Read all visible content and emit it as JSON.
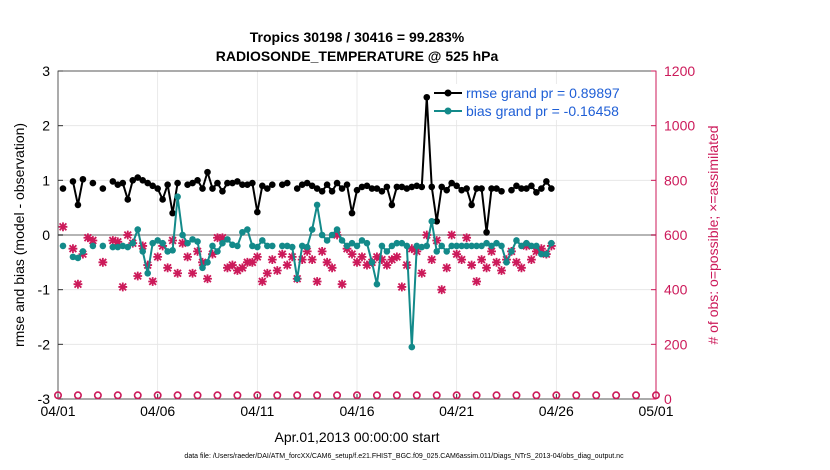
{
  "chart_data": {
    "type": "line",
    "title": "Tropics 30198 / 30416 = 99.283%",
    "subtitle": "RADIOSONDE_TEMPERATURE @ 525 hPa",
    "xlabel": "Apr.01,2013 00:00:00 start",
    "ylabel": "rmse and bias (model - observation)",
    "y2label": "# of obs: o=possible; ×=assimilated",
    "xlim": [
      0,
      30
    ],
    "ylim": [
      -3,
      3
    ],
    "y2lim": [
      0,
      1200
    ],
    "x_tick_labels": [
      "04/01",
      "04/06",
      "04/11",
      "04/16",
      "04/21",
      "04/26",
      "05/01"
    ],
    "x_tick_values": [
      0,
      5,
      10,
      15,
      20,
      25,
      30
    ],
    "y_tick_labels": [
      "3",
      "2",
      "1",
      "0",
      "-1",
      "-2",
      "-3"
    ],
    "y_tick_values": [
      3,
      2,
      1,
      0,
      -1,
      -2,
      -3
    ],
    "y2_tick_labels": [
      "1200",
      "1000",
      "800",
      "600",
      "400",
      "200",
      "0"
    ],
    "y2_tick_values": [
      1200,
      1000,
      800,
      600,
      400,
      200,
      0
    ],
    "grid": true,
    "legend_position": "top-right",
    "footer": "data file: /Users/raeder/DAI/ATM_forcXX/CAM6_setup/f.e21.FHIST_BGC.f09_025.CAM6assim.011/Diags_NTrS_2013-04/obs_diag_output.nc",
    "x": [
      0.25,
      0.5,
      0.75,
      1.0,
      1.25,
      1.5,
      1.75,
      2.0,
      2.25,
      2.5,
      2.75,
      3.0,
      3.25,
      3.5,
      3.75,
      4.0,
      4.25,
      4.5,
      4.75,
      5.0,
      5.25,
      5.5,
      5.75,
      6.0,
      6.25,
      6.5,
      6.75,
      7.0,
      7.25,
      7.5,
      7.75,
      8.0,
      8.25,
      8.5,
      8.75,
      9.0,
      9.25,
      9.5,
      9.75,
      10.0,
      10.25,
      10.5,
      10.75,
      11.0,
      11.25,
      11.5,
      11.75,
      12.0,
      12.25,
      12.5,
      12.75,
      13.0,
      13.25,
      13.5,
      13.75,
      14.0,
      14.25,
      14.5,
      14.75,
      15.0,
      15.25,
      15.5,
      15.75,
      16.0,
      16.25,
      16.5,
      16.75,
      17.0,
      17.25,
      17.5,
      17.75,
      18.0,
      18.25,
      18.5,
      18.75,
      19.0,
      19.25,
      19.5,
      19.75,
      20.0,
      20.25,
      20.5,
      20.75,
      21.0,
      21.25,
      21.5,
      21.75,
      22.0,
      22.25,
      22.5,
      22.75,
      23.0,
      23.25,
      23.5,
      23.75,
      24.0,
      24.25,
      24.5,
      24.75,
      25.0,
      25.25,
      25.5,
      25.75,
      26.0,
      26.25,
      26.5,
      26.75,
      27.0,
      27.25,
      27.5,
      27.75,
      28.0,
      28.25,
      28.5,
      28.75,
      29.0,
      29.25,
      29.5
    ],
    "series": [
      {
        "name": "rmse grand pr = 0.89897",
        "legend": "rmse grand pr = 0.89897",
        "color": "#000000",
        "values": [
          0.85,
          null,
          0.98,
          0.55,
          1.02,
          null,
          0.95,
          null,
          0.85,
          null,
          0.98,
          0.92,
          0.95,
          0.65,
          1.0,
          1.05,
          1.0,
          0.95,
          0.9,
          0.85,
          0.65,
          0.92,
          0.4,
          0.95,
          null,
          0.92,
          0.95,
          1.0,
          0.85,
          1.15,
          0.85,
          0.95,
          0.8,
          0.95,
          0.95,
          0.98,
          0.92,
          0.92,
          0.95,
          0.42,
          0.9,
          0.85,
          0.92,
          null,
          0.92,
          0.95,
          null,
          0.85,
          0.92,
          0.95,
          0.9,
          0.85,
          0.8,
          0.92,
          0.8,
          0.95,
          0.85,
          0.92,
          0.4,
          0.82,
          0.88,
          0.9,
          0.85,
          0.85,
          0.8,
          0.88,
          0.55,
          0.88,
          0.88,
          0.85,
          0.88,
          0.9,
          0.88,
          2.52,
          0.88,
          0.25,
          0.88,
          0.82,
          0.95,
          0.9,
          0.82,
          0.85,
          0.55,
          0.85,
          0.85,
          0.05,
          0.85,
          0.85,
          0.8,
          null,
          0.82,
          0.9,
          0.85,
          0.85,
          0.9,
          0.78,
          0.85,
          0.98,
          0.85,
          null,
          null,
          null,
          null,
          null,
          null,
          null,
          null,
          null,
          null,
          null,
          null,
          null,
          null,
          null,
          null,
          null,
          null,
          null
        ]
      },
      {
        "name": "bias grand pr = -0.16458",
        "legend": "bias grand pr = -0.16458",
        "color": "#138a8a",
        "values": [
          -0.2,
          null,
          -0.4,
          -0.42,
          -0.3,
          null,
          -0.2,
          null,
          -0.2,
          null,
          -0.22,
          -0.22,
          -0.2,
          -0.22,
          -0.15,
          0.1,
          -0.3,
          -0.7,
          -0.15,
          -0.1,
          -0.15,
          -0.3,
          -0.28,
          0.7,
          0.0,
          -0.15,
          -0.08,
          -0.12,
          -0.6,
          -0.5,
          -0.2,
          -0.3,
          -0.15,
          -0.08,
          -0.18,
          -0.2,
          0.05,
          0.1,
          -0.2,
          -0.22,
          -0.1,
          -0.2,
          -0.2,
          null,
          -0.2,
          -0.2,
          -0.22,
          -0.8,
          -0.2,
          -0.22,
          0.1,
          0.55,
          0.0,
          -0.1,
          0.0,
          0.1,
          -0.1,
          -0.2,
          -0.15,
          -0.2,
          -0.1,
          -0.15,
          -0.5,
          -0.9,
          -0.2,
          -0.3,
          -0.2,
          -0.15,
          -0.15,
          -0.2,
          -2.05,
          -0.2,
          -0.22,
          -0.2,
          0.25,
          -0.3,
          -0.2,
          -0.3,
          -0.2,
          -0.2,
          -0.2,
          -0.2,
          -0.2,
          -0.2,
          -0.2,
          -0.15,
          -0.2,
          -0.15,
          -0.2,
          -0.5,
          -0.3,
          -0.1,
          -0.2,
          -0.15,
          -0.2,
          -0.2,
          -0.35,
          -0.35,
          -0.15,
          null,
          null,
          null,
          null,
          null,
          null,
          null,
          null,
          null,
          null,
          null,
          null,
          null,
          null,
          null,
          null,
          null,
          null,
          null
        ]
      }
    ],
    "obs_possible": {
      "name": "possible",
      "color": "#cc1a5a",
      "x": [
        0,
        1,
        2,
        3,
        4,
        5,
        6,
        7,
        8,
        9,
        10,
        11,
        12,
        13,
        14,
        15,
        16,
        17,
        18,
        19,
        20,
        21,
        22,
        23,
        24,
        25,
        26,
        27,
        28,
        29,
        30
      ],
      "values": [
        10,
        10,
        10,
        10,
        10,
        10,
        10,
        10,
        10,
        10,
        10,
        10,
        10,
        10,
        10,
        10,
        10,
        10,
        10,
        10,
        10,
        10,
        10,
        10,
        10,
        10,
        10,
        10,
        10,
        10,
        10
      ]
    },
    "obs_assimilated": {
      "name": "assimilated",
      "color": "#cc1a5a",
      "x": [
        0.25,
        0.5,
        0.75,
        1.0,
        1.25,
        1.5,
        1.75,
        2.0,
        2.25,
        2.5,
        2.75,
        3.0,
        3.25,
        3.5,
        3.75,
        4.0,
        4.25,
        4.5,
        4.75,
        5.0,
        5.25,
        5.5,
        5.75,
        6.0,
        6.25,
        6.5,
        6.75,
        7.0,
        7.25,
        7.5,
        7.75,
        8.0,
        8.25,
        8.5,
        8.75,
        9.0,
        9.25,
        9.5,
        9.75,
        10.0,
        10.25,
        10.5,
        10.75,
        11.0,
        11.25,
        11.5,
        11.75,
        12.0,
        12.25,
        12.5,
        12.75,
        13.0,
        13.25,
        13.5,
        13.75,
        14.0,
        14.25,
        14.5,
        14.75,
        15.0,
        15.25,
        15.5,
        15.75,
        16.0,
        16.25,
        16.5,
        16.75,
        17.0,
        17.25,
        17.5,
        17.75,
        18.0,
        18.25,
        18.5,
        18.75,
        19.0,
        19.25,
        19.5,
        19.75,
        20.0,
        20.25,
        20.5,
        20.75,
        21.0,
        21.25,
        21.5,
        21.75,
        22.0,
        22.25,
        22.5,
        22.75,
        23.0,
        23.25,
        23.5,
        23.75,
        24.0,
        24.25,
        24.5,
        24.75,
        25.0,
        25.25,
        25.5,
        25.75,
        26.0,
        26.25,
        26.5,
        26.75,
        27.0,
        27.25,
        27.5,
        27.75,
        28.0,
        28.25,
        28.5,
        28.75,
        29.0,
        29.25,
        29.5
      ],
      "values": [
        630,
        null,
        550,
        420,
        530,
        590,
        580,
        null,
        500,
        null,
        580,
        575,
        410,
        600,
        570,
        450,
        560,
        490,
        430,
        520,
        560,
        480,
        580,
        460,
        570,
        520,
        460,
        540,
        500,
        440,
        530,
        590,
        590,
        480,
        490,
        470,
        480,
        500,
        500,
        520,
        430,
        460,
        510,
        470,
        530,
        490,
        520,
        440,
        510,
        540,
        510,
        430,
        540,
        500,
        480,
        600,
        420,
        550,
        530,
        500,
        520,
        490,
        500,
        520,
        510,
        490,
        510,
        520,
        410,
        490,
        550,
        540,
        460,
        600,
        510,
        580,
        400,
        480,
        600,
        530,
        510,
        590,
        490,
        430,
        510,
        480,
        540,
        500,
        470,
        510,
        540,
        500,
        480,
        560,
        510,
        540,
        550,
        530,
        560,
        null,
        null,
        null,
        null,
        null,
        null,
        null,
        null,
        null,
        null,
        null,
        null,
        null,
        null,
        null,
        null,
        null,
        null,
        null
      ]
    }
  }
}
